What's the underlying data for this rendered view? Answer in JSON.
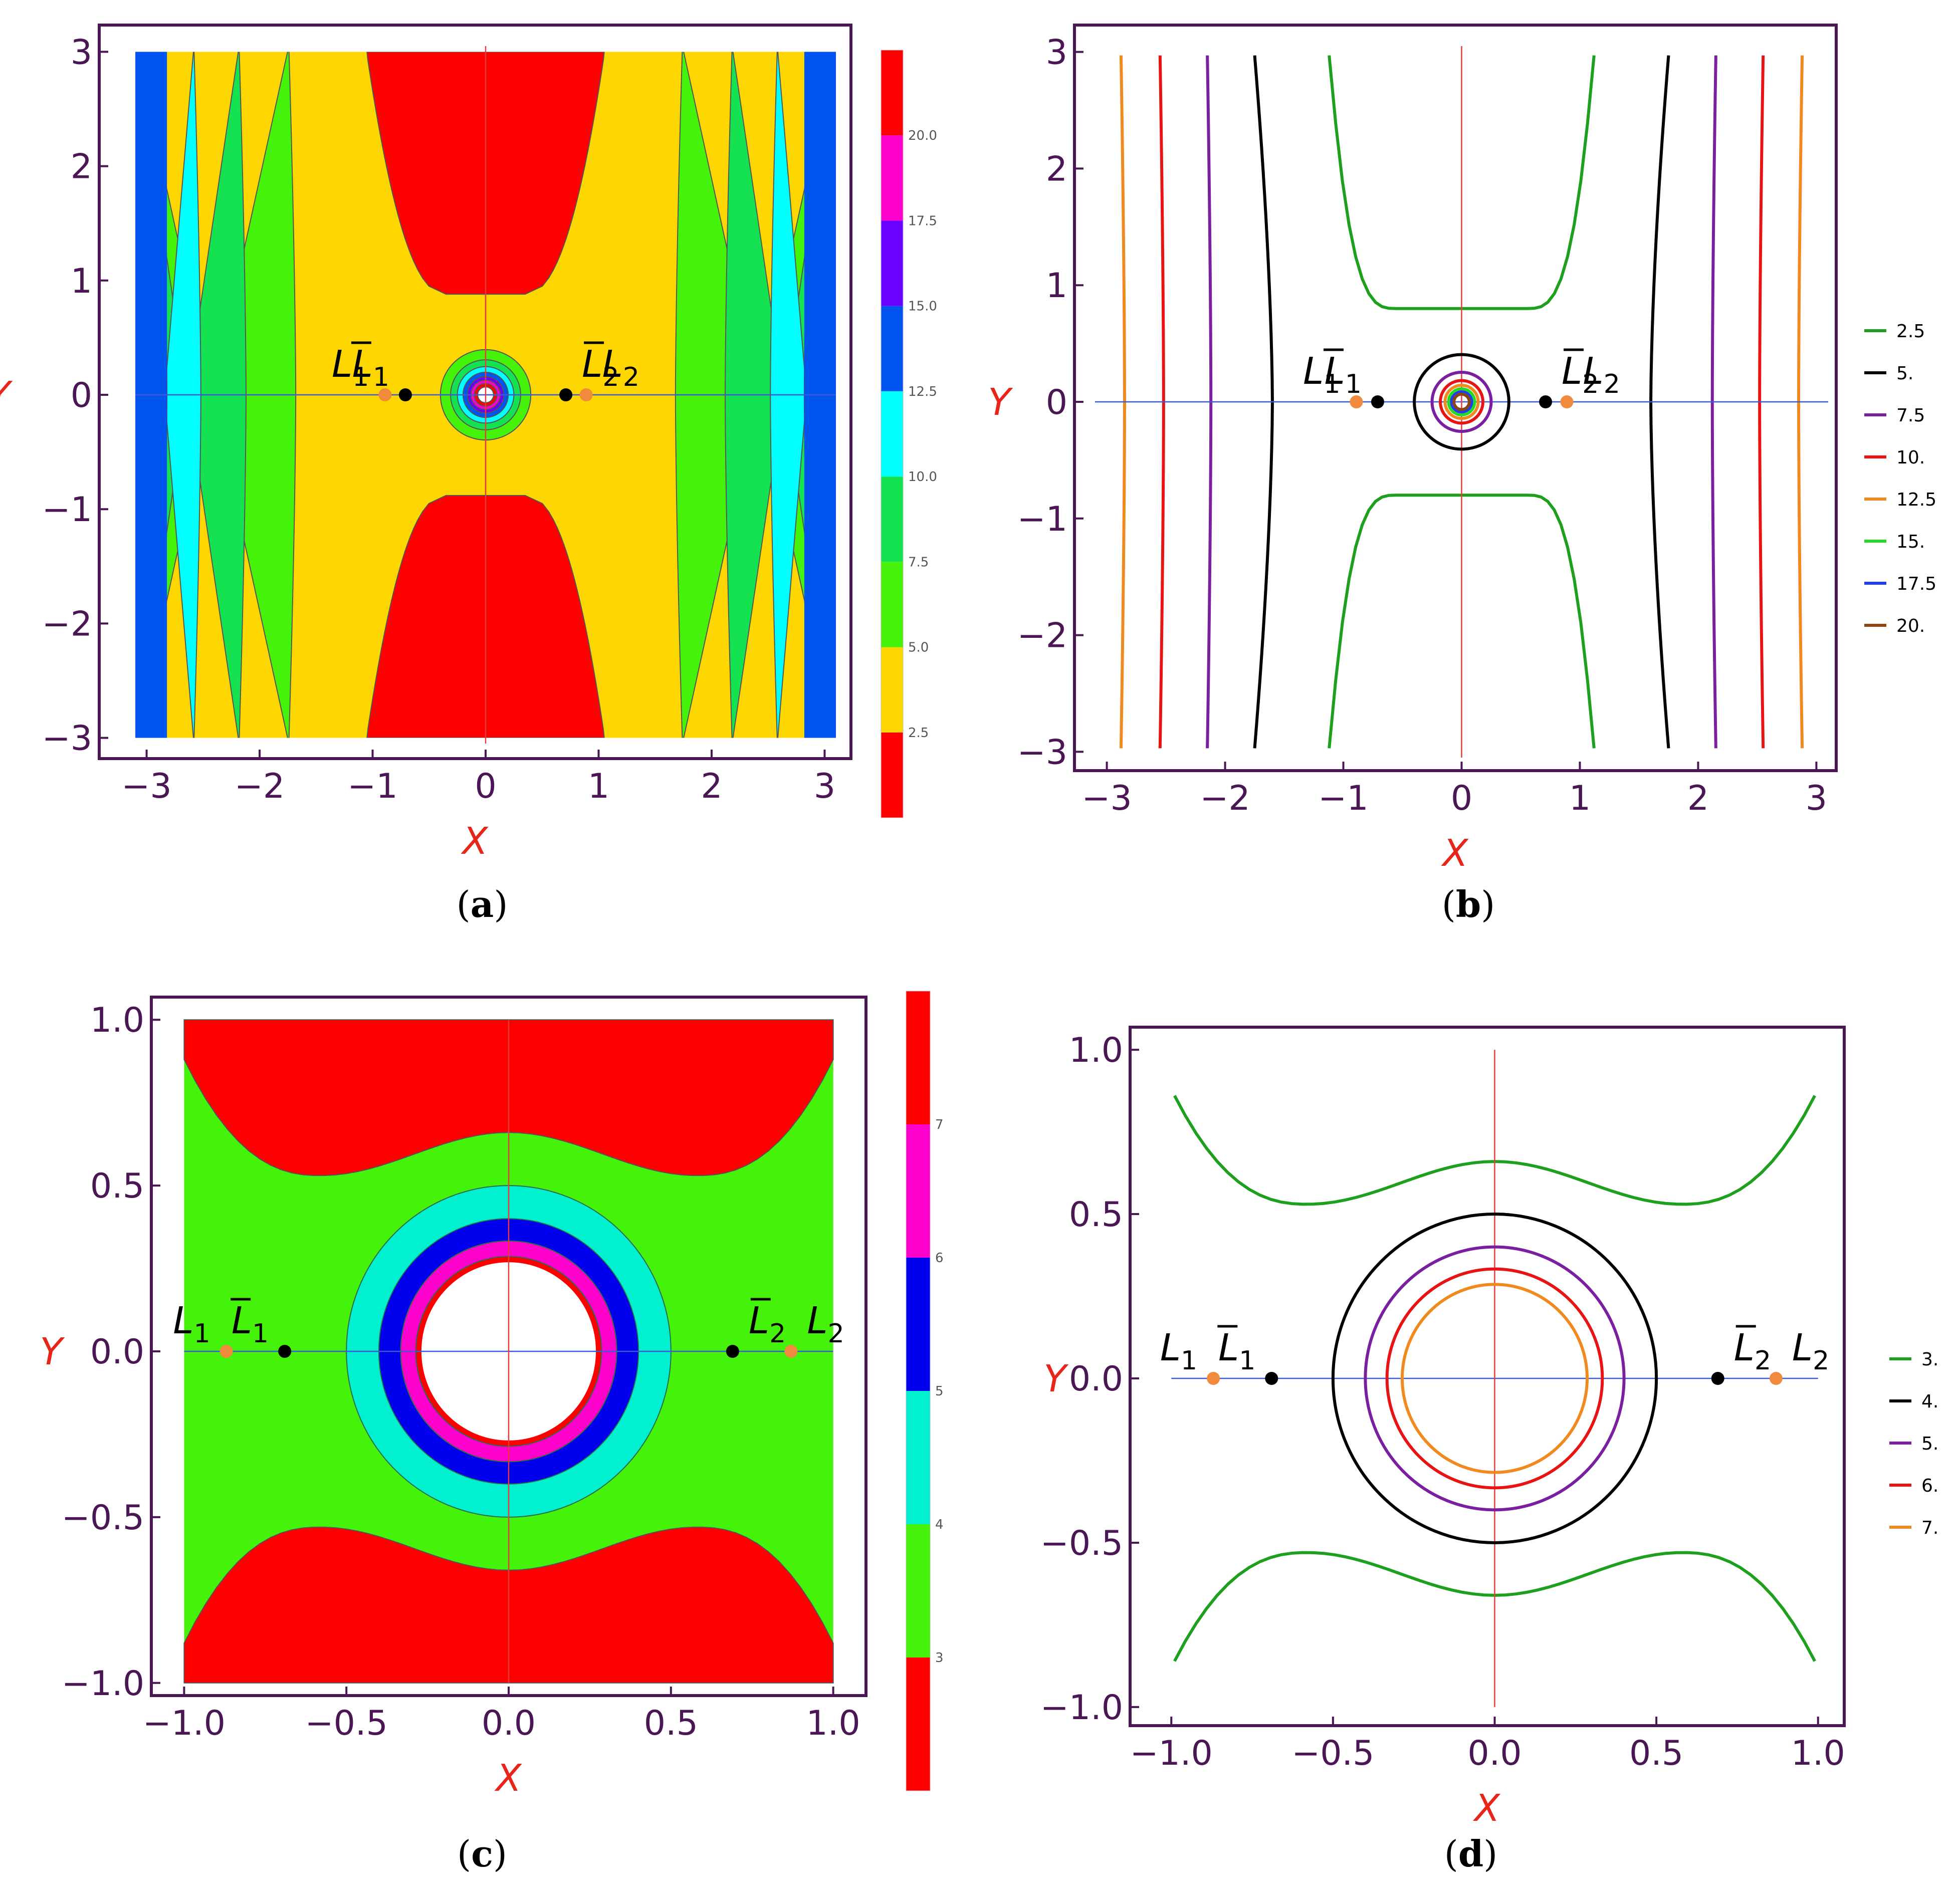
{
  "figure": {
    "panels": [
      {
        "id": "a",
        "caption": "a",
        "type": "filled-contour",
        "xlim": [
          -3.1,
          3.1
        ],
        "ylim": [
          -3.05,
          3.05
        ],
        "xticks": [
          "−3",
          "−2",
          "−1",
          "0",
          "1",
          "2",
          "3"
        ],
        "yticks": [
          "3",
          "2",
          "1",
          "0",
          "−1",
          "−2",
          "−3"
        ],
        "xlabel": "X",
        "ylabel": "Y"
      },
      {
        "id": "b",
        "caption": "b",
        "type": "contour-lines",
        "xlim": [
          -3.1,
          3.1
        ],
        "ylim": [
          -3.05,
          3.05
        ],
        "xticks": [
          "−3",
          "−2",
          "−1",
          "0",
          "1",
          "2",
          "3"
        ],
        "yticks": [
          "3",
          "2",
          "1",
          "0",
          "−1",
          "−2",
          "−3"
        ],
        "xlabel": "X",
        "ylabel": "Y"
      },
      {
        "id": "c",
        "caption": "c",
        "type": "filled-contour",
        "xlim": [
          -1.05,
          1.05
        ],
        "ylim": [
          -1.02,
          1.02
        ],
        "xticks": [
          "−1.0",
          "−0.5",
          "0.0",
          "0.5",
          "1.0"
        ],
        "yticks": [
          "1.0",
          "0.5",
          "0.0",
          "−0.5",
          "−1.0"
        ],
        "xlabel": "X",
        "ylabel": "Y"
      },
      {
        "id": "d",
        "caption": "d",
        "type": "contour-lines",
        "xlim": [
          -1.05,
          1.05
        ],
        "ylim": [
          -1.02,
          1.02
        ],
        "xticks": [
          "−1.0",
          "−0.5",
          "0.0",
          "0.5",
          "1.0"
        ],
        "yticks": [
          "1.0",
          "0.5",
          "0.0",
          "−0.5",
          "−1.0"
        ],
        "xlabel": "X",
        "ylabel": "Y"
      }
    ],
    "points": {
      "L1": "L",
      "L1_sub": "1",
      "L1bar": "L",
      "L1bar_sub": "1",
      "L2": "L",
      "L2_sub": "2",
      "L2bar": "L",
      "L2bar_sub": "2"
    }
  },
  "chart_data": [
    {
      "type": "heatmap",
      "panel": "a",
      "xlabel": "X",
      "ylabel": "Y",
      "xlim": [
        -3.1,
        3.1
      ],
      "ylim": [
        -3.05,
        3.05
      ],
      "colorbar": {
        "tick_labels": [
          "2.5",
          "5.0",
          "7.5",
          "10.0",
          "12.5",
          "15.0",
          "17.5",
          "20.0"
        ],
        "tick_values": [
          2.5,
          5.0,
          7.5,
          10.0,
          12.5,
          15.0,
          17.5,
          20.0
        ],
        "bands": [
          {
            "from": 0.0,
            "to": 2.5,
            "color": "#ff0000"
          },
          {
            "from": 2.5,
            "to": 5.0,
            "color": "#ffd700"
          },
          {
            "from": 5.0,
            "to": 7.5,
            "color": "#44f20a"
          },
          {
            "from": 7.5,
            "to": 10.0,
            "color": "#14e250"
          },
          {
            "from": 10.0,
            "to": 12.5,
            "color": "#00ffff"
          },
          {
            "from": 12.5,
            "to": 15.0,
            "color": "#0055ee"
          },
          {
            "from": 15.0,
            "to": 17.5,
            "color": "#6a00ff"
          },
          {
            "from": 17.5,
            "to": 20.0,
            "color": "#ff00cc"
          },
          {
            "from": 20.0,
            "to": 22.5,
            "color": "#ff0000"
          }
        ]
      },
      "regions": {
        "vertical_strips_x": [
          1.68,
          2.12,
          2.52,
          2.82,
          2.93
        ],
        "strip_colors": [
          "#44f20a",
          "#14e250",
          "#00ffff",
          "#0055ee"
        ],
        "ring_radii": [
          0.4,
          0.31,
          0.25,
          0.2,
          0.16,
          0.13,
          0.1,
          0.07
        ],
        "ring_colors": [
          "#44f20a",
          "#14e250",
          "#00ffff",
          "#0055ee",
          "#6a00ff",
          "#ff00cc",
          "#ff0000",
          "#ffffff"
        ]
      },
      "points": [
        {
          "name": "L1",
          "x": -0.89,
          "y": 0.0,
          "color": "#f08a3c"
        },
        {
          "name": "L1bar",
          "x": -0.71,
          "y": 0.0,
          "color": "#000000"
        },
        {
          "name": "L2bar",
          "x": 0.71,
          "y": 0.0,
          "color": "#000000"
        },
        {
          "name": "L2",
          "x": 0.89,
          "y": 0.0,
          "color": "#f08a3c"
        }
      ]
    },
    {
      "type": "line",
      "panel": "b",
      "xlabel": "X",
      "ylabel": "Y",
      "xlim": [
        -3.1,
        3.1
      ],
      "ylim": [
        -3.05,
        3.05
      ],
      "legend_position": "right",
      "series": [
        {
          "name": "2.5",
          "color": "#1ea01e"
        },
        {
          "name": "5.",
          "color": "#000000"
        },
        {
          "name": "7.5",
          "color": "#7a1fa0"
        },
        {
          "name": "10.",
          "color": "#e81414"
        },
        {
          "name": "12.5",
          "color": "#f08a1e"
        },
        {
          "name": "15.",
          "color": "#28d828"
        },
        {
          "name": "17.5",
          "color": "#1e3cf0"
        },
        {
          "name": "20.",
          "color": "#8b4513"
        }
      ],
      "vertical_levels_x": [
        {
          "level": "5.",
          "x_center": 1.6,
          "x_end": 1.75
        },
        {
          "level": "7.5",
          "x_center": 2.12,
          "x_end": 2.15
        },
        {
          "level": "10.",
          "x_center": 2.52,
          "x_end": 2.55
        },
        {
          "level": "12.5",
          "x_center": 2.85,
          "x_end": 2.88
        }
      ],
      "ring_radii": [
        {
          "level": "5.",
          "r": 0.4
        },
        {
          "level": "7.5",
          "r": 0.25
        },
        {
          "level": "10.",
          "r": 0.18
        },
        {
          "level": "12.5",
          "r": 0.14
        },
        {
          "level": "15.",
          "r": 0.11
        },
        {
          "level": "17.5",
          "r": 0.085
        },
        {
          "level": "20.",
          "r": 0.065
        }
      ],
      "points": [
        {
          "name": "L1",
          "x": -0.89,
          "y": 0.0,
          "color": "#f08a3c"
        },
        {
          "name": "L1bar",
          "x": -0.71,
          "y": 0.0,
          "color": "#000000"
        },
        {
          "name": "L2bar",
          "x": 0.71,
          "y": 0.0,
          "color": "#000000"
        },
        {
          "name": "L2",
          "x": 0.89,
          "y": 0.0,
          "color": "#f08a3c"
        }
      ]
    },
    {
      "type": "heatmap",
      "panel": "c",
      "xlabel": "X",
      "ylabel": "Y",
      "xlim": [
        -1.05,
        1.05
      ],
      "ylim": [
        -1.02,
        1.02
      ],
      "colorbar": {
        "tick_labels": [
          "3",
          "4",
          "5",
          "6",
          "7"
        ],
        "tick_values": [
          3,
          4,
          5,
          6,
          7
        ],
        "bands": [
          {
            "from": 2.0,
            "to": 3.0,
            "color": "#ff0000"
          },
          {
            "from": 3.0,
            "to": 4.0,
            "color": "#44f20a"
          },
          {
            "from": 4.0,
            "to": 5.0,
            "color": "#00f0d0"
          },
          {
            "from": 5.0,
            "to": 6.0,
            "color": "#0000ee"
          },
          {
            "from": 6.0,
            "to": 7.0,
            "color": "#ff00cc"
          },
          {
            "from": 7.0,
            "to": 8.0,
            "color": "#ff0000"
          }
        ]
      },
      "regions": {
        "ring_radii": [
          0.5,
          0.4,
          0.333,
          0.286
        ],
        "ring_colors": [
          "#00f0d0",
          "#0000ee",
          "#ff00cc",
          "#ff0000"
        ],
        "inner_color": "#ffffff"
      },
      "points": [
        {
          "name": "L1",
          "x": -0.87,
          "y": 0.0,
          "color": "#f08a3c"
        },
        {
          "name": "L1bar",
          "x": -0.69,
          "y": 0.0,
          "color": "#000000"
        },
        {
          "name": "L2bar",
          "x": 0.69,
          "y": 0.0,
          "color": "#000000"
        },
        {
          "name": "L2",
          "x": 0.87,
          "y": 0.0,
          "color": "#f08a3c"
        }
      ]
    },
    {
      "type": "line",
      "panel": "d",
      "xlabel": "X",
      "ylabel": "Y",
      "xlim": [
        -1.05,
        1.05
      ],
      "ylim": [
        -1.02,
        1.02
      ],
      "legend_position": "right",
      "series": [
        {
          "name": "3.",
          "color": "#1ea01e"
        },
        {
          "name": "4.",
          "color": "#000000"
        },
        {
          "name": "5.",
          "color": "#7a1fa0"
        },
        {
          "name": "6.",
          "color": "#e81414"
        },
        {
          "name": "7.",
          "color": "#f08a1e"
        }
      ],
      "ring_radii": [
        {
          "level": "4.",
          "r": 0.5
        },
        {
          "level": "5.",
          "r": 0.4
        },
        {
          "level": "6.",
          "r": 0.333
        },
        {
          "level": "7.",
          "r": 0.286
        }
      ],
      "points": [
        {
          "name": "L1",
          "x": -0.87,
          "y": 0.0,
          "color": "#f08a3c"
        },
        {
          "name": "L1bar",
          "x": -0.69,
          "y": 0.0,
          "color": "#000000"
        },
        {
          "name": "L2bar",
          "x": 0.69,
          "y": 0.0,
          "color": "#000000"
        },
        {
          "name": "L2",
          "x": 0.87,
          "y": 0.0,
          "color": "#f08a3c"
        }
      ]
    }
  ]
}
